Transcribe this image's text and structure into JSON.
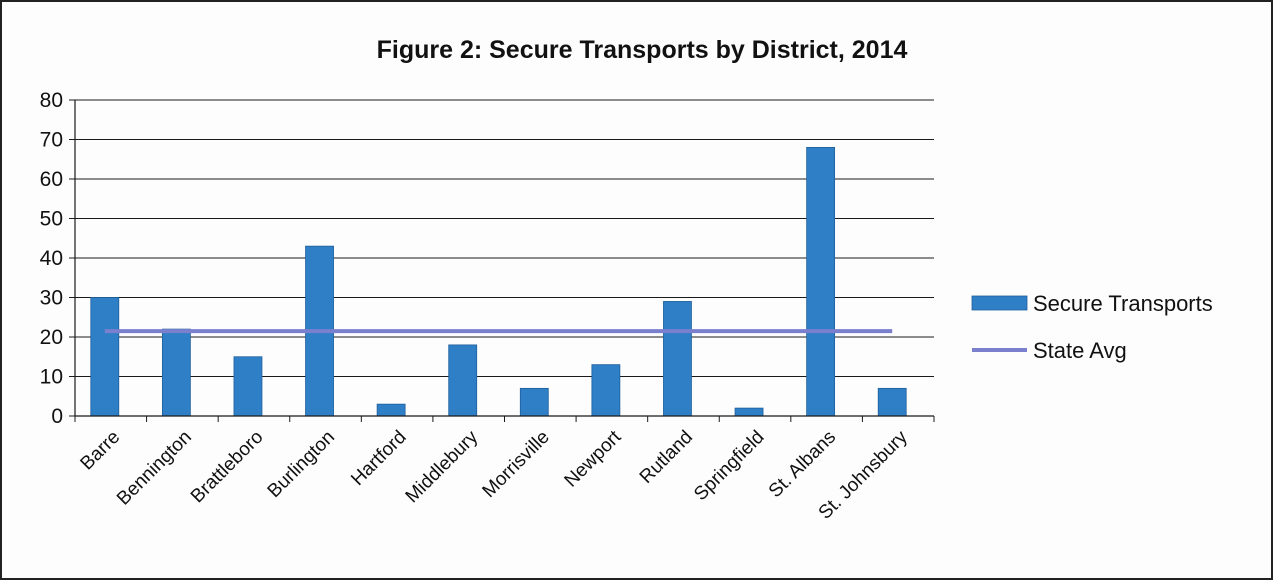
{
  "chart_data": {
    "type": "bar",
    "title": "Figure 2: Secure Transports by District, 2014",
    "xlabel": "",
    "ylabel": "",
    "ylim": [
      0,
      80
    ],
    "yticks": [
      "0",
      "10",
      "20",
      "30",
      "40",
      "50",
      "60",
      "70",
      "80"
    ],
    "grid": "horizontal",
    "legend_position": "right",
    "categories": [
      "Barre",
      "Bennington",
      "Brattleboro",
      "Burlington",
      "Hartford",
      "Middlebury",
      "Morrisville",
      "Newport",
      "Rutland",
      "Springfield",
      "St. Albans",
      "St. Johnsbury"
    ],
    "series": [
      {
        "name": "Secure Transports",
        "type": "bar",
        "color": "#2f7fc6",
        "values": [
          30,
          22,
          15,
          43,
          3,
          18,
          7,
          13,
          29,
          2,
          68,
          7
        ]
      },
      {
        "name": "State Avg",
        "type": "line",
        "color": "#7a7fce",
        "values": [
          21.5,
          21.5,
          21.5,
          21.5,
          21.5,
          21.5,
          21.5,
          21.5,
          21.5,
          21.5,
          21.5,
          21.5
        ]
      }
    ]
  }
}
